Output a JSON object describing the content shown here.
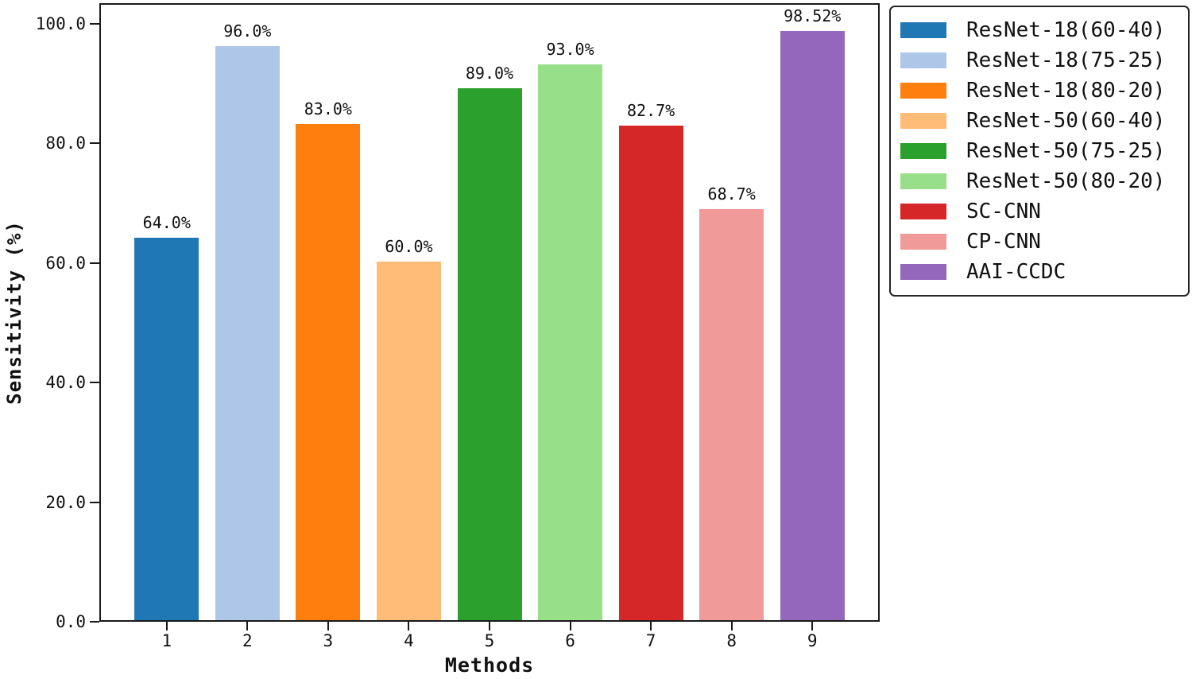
{
  "chart_data": {
    "type": "bar",
    "title": "",
    "xlabel": "Methods",
    "ylabel": "Sensitivity (%)",
    "ylim": [
      0,
      103.5
    ],
    "grid": false,
    "legend_position": "outside upper right",
    "yticks": [
      "0.0",
      "20.0",
      "40.0",
      "60.0",
      "80.0",
      "100.0"
    ],
    "ytick_values": [
      0,
      20,
      40,
      60,
      80,
      100
    ],
    "categories": [
      "1",
      "2",
      "3",
      "4",
      "5",
      "6",
      "7",
      "8",
      "9"
    ],
    "bars": [
      {
        "category": "1",
        "name": "ResNet-18(60-40)",
        "value": 64.0,
        "label": "64.0%",
        "color": "#1f77b4"
      },
      {
        "category": "2",
        "name": "ResNet-18(75-25)",
        "value": 96.0,
        "label": "96.0%",
        "color": "#aec7e8"
      },
      {
        "category": "3",
        "name": "ResNet-18(80-20)",
        "value": 83.0,
        "label": "83.0%",
        "color": "#ff7f0e"
      },
      {
        "category": "4",
        "name": "ResNet-50(60-40)",
        "value": 60.0,
        "label": "60.0%",
        "color": "#ffbb78"
      },
      {
        "category": "5",
        "name": "ResNet-50(75-25)",
        "value": 89.0,
        "label": "89.0%",
        "color": "#2ca02c"
      },
      {
        "category": "6",
        "name": "ResNet-50(80-20)",
        "value": 93.0,
        "label": "93.0%",
        "color": "#98df8a"
      },
      {
        "category": "7",
        "name": "SC-CNN",
        "value": 82.7,
        "label": "82.7%",
        "color": "#d62728"
      },
      {
        "category": "8",
        "name": "CP-CNN",
        "value": 68.7,
        "label": "68.7%",
        "color": "#f09a9a"
      },
      {
        "category": "9",
        "name": "AAI-CCDC",
        "value": 98.52,
        "label": "98.52%",
        "color": "#9467bd"
      }
    ],
    "legend_entries": [
      {
        "label": "ResNet-18(60-40)",
        "color": "#1f77b4"
      },
      {
        "label": "ResNet-18(75-25)",
        "color": "#aec7e8"
      },
      {
        "label": "ResNet-18(80-20)",
        "color": "#ff7f0e"
      },
      {
        "label": "ResNet-50(60-40)",
        "color": "#ffbb78"
      },
      {
        "label": "ResNet-50(75-25)",
        "color": "#2ca02c"
      },
      {
        "label": "ResNet-50(80-20)",
        "color": "#98df8a"
      },
      {
        "label": "SC-CNN",
        "color": "#d62728"
      },
      {
        "label": "CP-CNN",
        "color": "#f09a9a"
      },
      {
        "label": "AAI-CCDC",
        "color": "#9467bd"
      }
    ]
  }
}
